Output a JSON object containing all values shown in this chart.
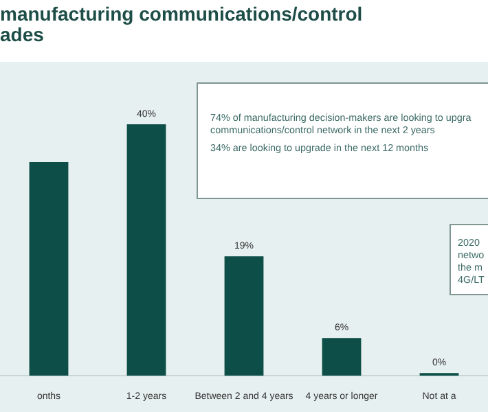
{
  "chart_data": {
    "type": "bar",
    "title": "manufacturing communications/control\nades",
    "categories": [
      "onths",
      "1-2 years",
      "Between 2 and 4 years",
      "4 years or longer",
      "Not at a"
    ],
    "values": [
      34,
      40,
      19,
      6,
      0
    ],
    "value_labels": [
      null,
      "40%",
      "19%",
      "6%",
      "0%"
    ],
    "color": "#0d4f48",
    "ylim": [
      0,
      46
    ],
    "annotations": [
      "74% of manufacturing decision-makers are looking to upgra\ncommunications/control network in the next 2 years",
      "34% are looking to upgrade in the next 12 months",
      "2020\nnetwo\nthe m\n4G/LT"
    ]
  }
}
